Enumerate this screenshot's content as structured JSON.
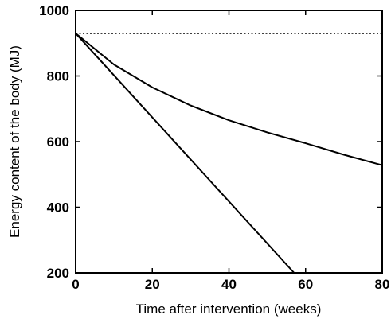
{
  "chart_data": {
    "type": "line",
    "title": "",
    "xlabel": "Time after intervention (weeks)",
    "ylabel": "Energy content of the body (MJ)",
    "xlim": [
      0,
      80
    ],
    "ylim": [
      200,
      1000
    ],
    "xticks": [
      0,
      20,
      40,
      60,
      80
    ],
    "yticks": [
      200,
      400,
      600,
      800,
      1000
    ],
    "grid": false,
    "legend": "none",
    "series": [
      {
        "style": "dotted",
        "color": "#000000",
        "x": [
          0,
          80
        ],
        "y": [
          930,
          930
        ]
      },
      {
        "style": "solid",
        "color": "#000000",
        "x": [
          0,
          10,
          20,
          30,
          40,
          50,
          60,
          70,
          80
        ],
        "y": [
          930,
          835,
          765,
          710,
          665,
          628,
          595,
          560,
          528
        ]
      },
      {
        "style": "solid",
        "color": "#000000",
        "x": [
          0,
          57
        ],
        "y": [
          930,
          200
        ]
      }
    ]
  }
}
